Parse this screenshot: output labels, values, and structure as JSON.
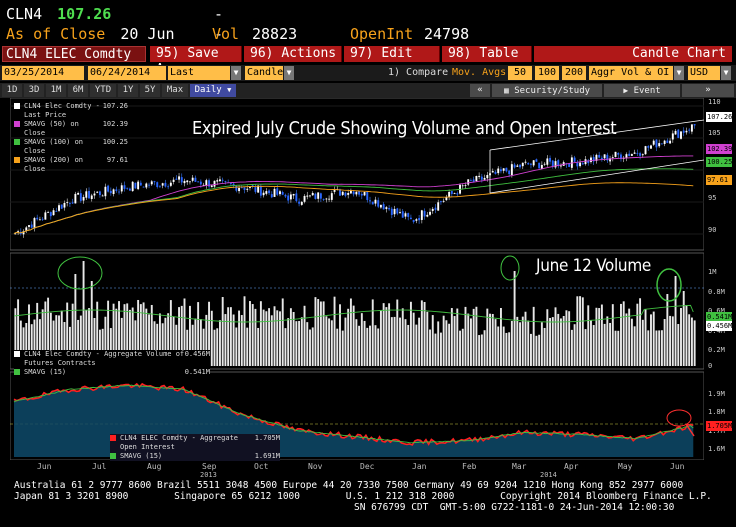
{
  "quote": {
    "symbol": "CLN4",
    "price": "107.26",
    "change": "-- / --",
    "as_of_label": "As of Close",
    "as_of_date": "20 Jun",
    "vol_label": "Vol",
    "vol_value": "28823",
    "openint_label": "OpenInt",
    "openint_value": "24798"
  },
  "command_bar": {
    "ticker": "CLN4 ELEC Comdty",
    "buttons": [
      {
        "num": "95)",
        "label": "Save As"
      },
      {
        "num": "96)",
        "label": "Actions"
      },
      {
        "num": "97)",
        "label": "Edit"
      },
      {
        "num": "98)",
        "label": "Table"
      }
    ],
    "chart_type": "Candle Chart"
  },
  "controls": {
    "start_date": "03/25/2014",
    "end_date": "06/24/2014",
    "field": "Last Price",
    "style": "Candle",
    "compare": "1) Compare",
    "mov_avgs": "Mov. Avgs",
    "ma_periods": [
      "50",
      "100",
      "200"
    ],
    "aggr": "Aggr Vol & OI",
    "currency": "USD"
  },
  "tabs": {
    "periods": [
      "1D",
      "3D",
      "1M",
      "6M",
      "YTD",
      "1Y",
      "5Y",
      "Max"
    ],
    "frequency": "Daily",
    "nav_left": "«",
    "nav_right": "»",
    "security_study": "Security/Study",
    "event": "Event"
  },
  "legend_price": [
    {
      "label": "CLN4 Elec Comdty - Last Price",
      "value": "107.26",
      "color": "#ffffff"
    },
    {
      "label": "SMAVG (50) on Close",
      "value": "102.39",
      "color": "#d040d0"
    },
    {
      "label": "SMAVG (100) on Close",
      "value": "100.25",
      "color": "#40c040"
    },
    {
      "label": "SMAVG (200) on Close",
      "value": "97.61",
      "color": "#f7a21b"
    }
  ],
  "legend_volume": [
    {
      "label": "CLN4 Elec Comdty - Aggregate Volume of Futures Contracts",
      "value": "0.456M",
      "color": "#ffffff"
    },
    {
      "label": "SMAVG (15)",
      "value": "0.541M",
      "color": "#40c040"
    }
  ],
  "legend_oi": [
    {
      "label": "CLN4 ELEC Comdty - Aggregate Open Interest",
      "value": "1.705M",
      "color": "#ff2020"
    },
    {
      "label": "SMAVG (15)",
      "value": "1.691M",
      "color": "#40c040"
    }
  ],
  "annotations": {
    "main_title": "Expired July Crude Showing Volume and Open Interest",
    "volume_note": "June 12 Volume"
  },
  "axis_price": {
    "ticks": [
      "110",
      "105",
      "100",
      "95",
      "90"
    ],
    "badges": [
      {
        "text": "107.26",
        "color": "#ffffff"
      },
      {
        "text": "102.39",
        "color": "#d040d0"
      },
      {
        "text": "100.25",
        "color": "#40c040"
      },
      {
        "text": "97.61",
        "color": "#f7a21b"
      }
    ]
  },
  "axis_volume": {
    "ticks": [
      "1M",
      "0.8M",
      "0.6M",
      "0.4M",
      "0.2M",
      "0"
    ],
    "badges": [
      {
        "text": "0.541M",
        "color": "#40c040"
      },
      {
        "text": "0.456M",
        "color": "#ffffff"
      }
    ]
  },
  "axis_oi": {
    "ticks": [
      "1.9M",
      "1.8M",
      "1.7M",
      "1.6M"
    ],
    "badges": [
      {
        "text": "1.705M",
        "color": "#ff2020"
      }
    ]
  },
  "x_axis": {
    "months": [
      "Jun",
      "Jul",
      "Aug",
      "Sep",
      "Oct",
      "Nov",
      "Dec",
      "Jan",
      "Feb",
      "Mar",
      "Apr",
      "May",
      "Jun"
    ],
    "years": [
      "2013",
      "2014"
    ]
  },
  "footer": {
    "line1": "Australia 61 2 9777 8600 Brazil 5511 3048 4500 Europe 44 20 7330 7500 Germany 49 69 9204 1210 Hong Kong 852 2977 6000",
    "line2": "Japan 81 3 3201 8900        Singapore 65 6212 1000        U.S. 1 212 318 2000        Copyright 2014 Bloomberg Finance L.P.",
    "line3": "SN 676799 CDT  GMT-5:00 G722-1181-0 24-Jun-2014 12:00:30"
  },
  "chart_data": [
    {
      "type": "candlestick",
      "title": "Expired July Crude Showing Volume and Open Interest",
      "series_name": "CLN4 Elec Comdty - Last Price",
      "ylim": [
        88,
        111
      ],
      "monthly_close_estimates": {
        "x": [
          "Jun",
          "Jul",
          "Aug",
          "Sep",
          "Oct",
          "Nov",
          "Dec",
          "Jan",
          "Feb",
          "Mar",
          "Apr",
          "May",
          "Jun"
        ],
        "values": [
          90,
          95.5,
          97.5,
          98.5,
          97.5,
          95.5,
          97,
          92,
          98,
          101,
          101.5,
          103,
          107.26
        ]
      },
      "last": 107.26,
      "moving_averages": [
        {
          "name": "SMAVG (50) on Close",
          "last": 102.39
        },
        {
          "name": "SMAVG (100) on Close",
          "last": 100.25
        },
        {
          "name": "SMAVG (200) on Close",
          "last": 97.61
        }
      ]
    },
    {
      "type": "bar",
      "title": "Aggregate Volume of Futures Contracts",
      "ylim": [
        0,
        1.1
      ],
      "unit": "M",
      "peaks": [
        {
          "x": "Jul",
          "value": 1.05
        },
        {
          "x": "Mar",
          "value": 0.95
        },
        {
          "x": "Jun 12",
          "value": 0.9
        }
      ],
      "last": 0.456,
      "smavg_15_last": 0.541
    },
    {
      "type": "area",
      "title": "Aggregate Open Interest",
      "ylim": [
        1.55,
        1.95
      ],
      "unit": "M",
      "monthly_estimates": {
        "x": [
          "Jun",
          "Jul",
          "Aug",
          "Sep",
          "Oct",
          "Nov",
          "Dec",
          "Jan",
          "Feb",
          "Mar",
          "Apr",
          "May",
          "Jun"
        ],
        "values": [
          1.82,
          1.88,
          1.9,
          1.88,
          1.76,
          1.68,
          1.65,
          1.62,
          1.63,
          1.67,
          1.66,
          1.64,
          1.705
        ]
      },
      "last": 1.705,
      "smavg_15_last": 1.691
    }
  ]
}
